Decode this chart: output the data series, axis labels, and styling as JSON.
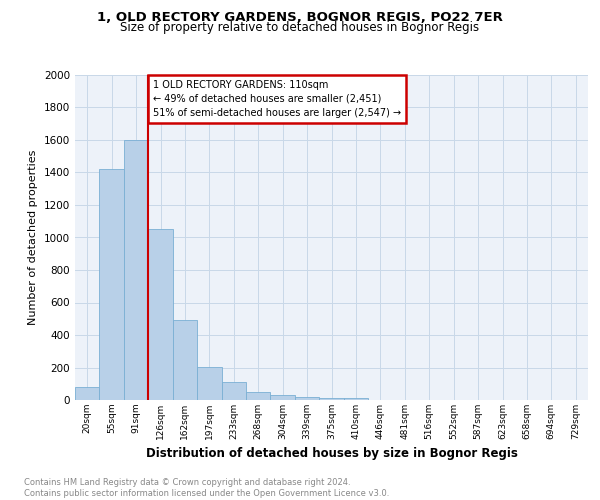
{
  "title": "1, OLD RECTORY GARDENS, BOGNOR REGIS, PO22 7ER",
  "subtitle": "Size of property relative to detached houses in Bognor Regis",
  "xlabel": "Distribution of detached houses by size in Bognor Regis",
  "ylabel": "Number of detached properties",
  "categories": [
    "20sqm",
    "55sqm",
    "91sqm",
    "126sqm",
    "162sqm",
    "197sqm",
    "233sqm",
    "268sqm",
    "304sqm",
    "339sqm",
    "375sqm",
    "410sqm",
    "446sqm",
    "481sqm",
    "516sqm",
    "552sqm",
    "587sqm",
    "623sqm",
    "658sqm",
    "694sqm",
    "729sqm"
  ],
  "values": [
    80,
    1420,
    1600,
    1050,
    490,
    205,
    110,
    48,
    28,
    18,
    12,
    15,
    0,
    0,
    0,
    0,
    0,
    0,
    0,
    0,
    0
  ],
  "bar_color": "#b8d0e8",
  "bar_edge_color": "#7aafd4",
  "vline_color": "#cc0000",
  "vline_pos": 2.5,
  "annotation_text": "1 OLD RECTORY GARDENS: 110sqm\n← 49% of detached houses are smaller (2,451)\n51% of semi-detached houses are larger (2,547) →",
  "annotation_box_color": "#cc0000",
  "ylim": [
    0,
    2000
  ],
  "yticks": [
    0,
    200,
    400,
    600,
    800,
    1000,
    1200,
    1400,
    1600,
    1800,
    2000
  ],
  "footer_line1": "Contains HM Land Registry data © Crown copyright and database right 2024.",
  "footer_line2": "Contains public sector information licensed under the Open Government Licence v3.0.",
  "bg_color": "#edf2f9",
  "fig_bg_color": "#ffffff"
}
